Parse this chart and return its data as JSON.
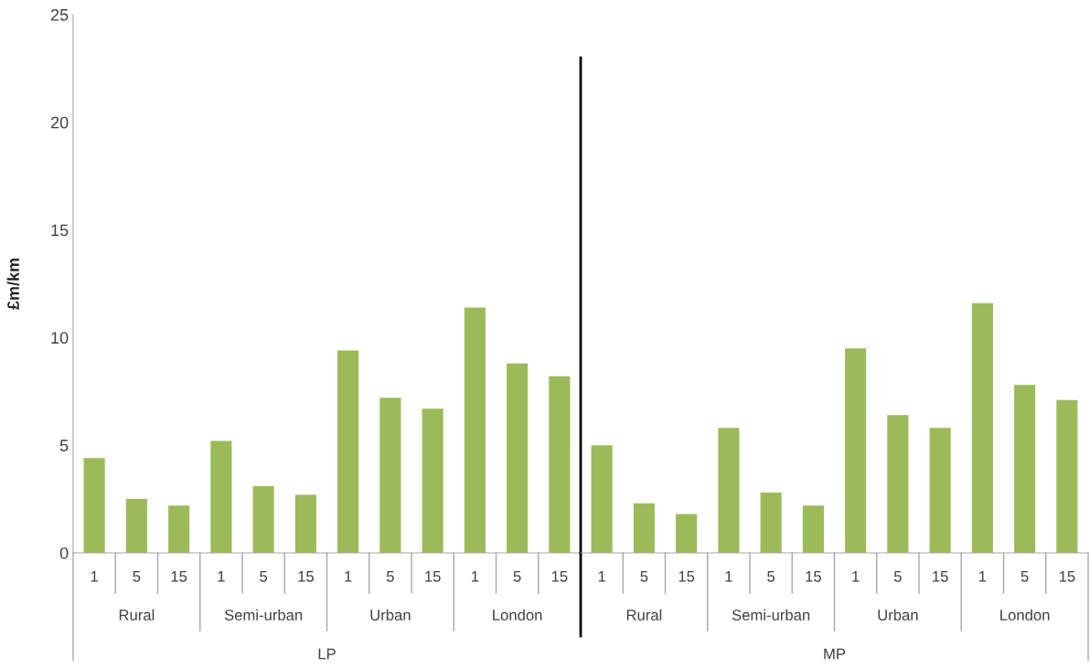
{
  "chart_data": [
    {
      "type": "bar",
      "xlabel": "LP",
      "ylabel": "£m/km",
      "categories": [
        "1",
        "5",
        "15",
        "1",
        "5",
        "15",
        "1",
        "5",
        "15",
        "1",
        "5",
        "15"
      ],
      "values": [
        4.4,
        2.5,
        2.2,
        5.2,
        3.1,
        2.7,
        9.4,
        7.2,
        6.7,
        11.4,
        8.8,
        8.2
      ],
      "color": "#9bbb59",
      "ylim": [
        0,
        25
      ],
      "yticks": [
        0,
        5,
        10,
        15,
        20,
        25
      ],
      "grid": false,
      "legend": false,
      "annotations": [
        "Rural",
        "Semi-urban",
        "Urban",
        "London"
      ]
    },
    {
      "type": "bar",
      "xlabel": "MP",
      "categories": [
        "1",
        "5",
        "15",
        "1",
        "5",
        "15",
        "1",
        "5",
        "15",
        "1",
        "5",
        "15"
      ],
      "values": [
        5.0,
        2.3,
        1.8,
        5.8,
        2.8,
        2.2,
        9.5,
        6.4,
        5.8,
        11.6,
        7.8,
        7.1
      ],
      "color": "#9bbb59",
      "ylim": [
        0,
        25
      ],
      "tick_labels": "x",
      "grid": false,
      "legend": false,
      "annotations": [
        "Rural",
        "Semi-urban",
        "Urban",
        "London"
      ]
    }
  ]
}
